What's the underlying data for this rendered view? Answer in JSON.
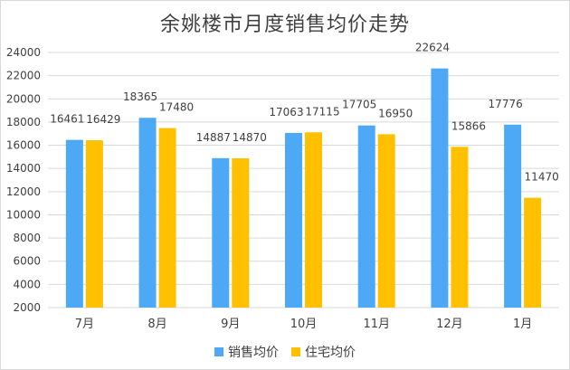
{
  "chart_data": {
    "type": "bar",
    "title": "余姚楼市月度销售均价走势",
    "categories": [
      "7月",
      "8月",
      "9月",
      "10月",
      "11月",
      "12月",
      "1月"
    ],
    "series": [
      {
        "name": "销售均价",
        "color": "#4da9f5",
        "values": [
          16461,
          18365,
          14887,
          17063,
          17705,
          22624,
          17776
        ]
      },
      {
        "name": "住宅均价",
        "color": "#ffc000",
        "values": [
          16429,
          17480,
          14870,
          17115,
          16950,
          15866,
          11470
        ]
      }
    ],
    "ylim": [
      2000,
      24000
    ],
    "yticks": [
      2000,
      4000,
      6000,
      8000,
      10000,
      12000,
      14000,
      16000,
      18000,
      20000,
      22000,
      24000
    ],
    "grid": true,
    "legend": "bottom",
    "xlabel": "",
    "ylabel": ""
  }
}
